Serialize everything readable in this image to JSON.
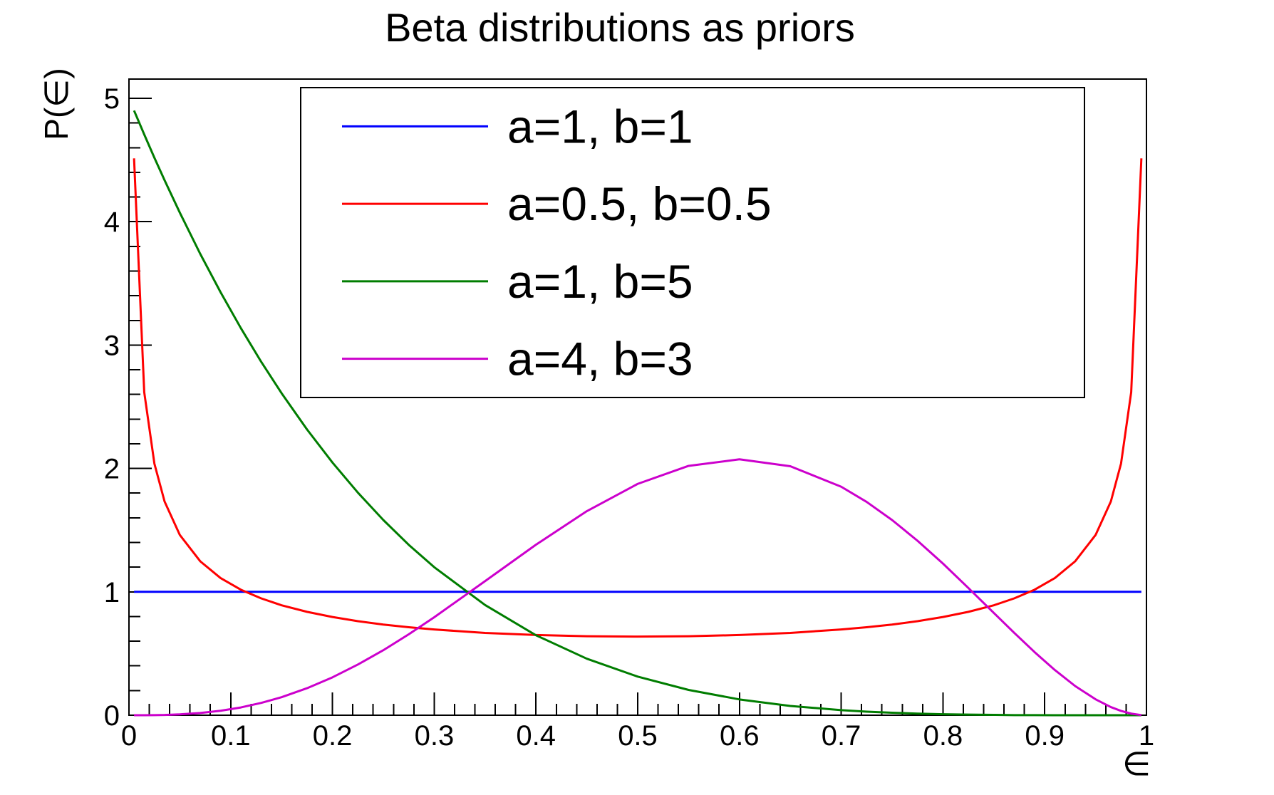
{
  "chart_data": {
    "type": "line",
    "title": "Beta distributions as priors",
    "xlabel": "∈",
    "ylabel": "P(∈)",
    "xlim": [
      0,
      1
    ],
    "ylim": [
      0,
      5.156
    ],
    "grid": false,
    "legend_position": "top-center",
    "x_axis": {
      "major_ticks": [
        0,
        0.1,
        0.2,
        0.3,
        0.4,
        0.5,
        0.6,
        0.7,
        0.8,
        0.9,
        1
      ],
      "tick_labels": [
        "0",
        "0.1",
        "0.2",
        "0.3",
        "0.4",
        "0.5",
        "0.6",
        "0.7",
        "0.8",
        "0.9",
        "1"
      ],
      "minor_tick_step": 0.02
    },
    "y_axis": {
      "major_ticks": [
        0,
        1,
        2,
        3,
        4,
        5
      ],
      "tick_labels": [
        "0",
        "1",
        "2",
        "3",
        "4",
        "5"
      ],
      "minor_tick_step": 0.2
    },
    "x": [
      0.005,
      0.015,
      0.025,
      0.035,
      0.05,
      0.07,
      0.09,
      0.11,
      0.13,
      0.15,
      0.175,
      0.2,
      0.225,
      0.25,
      0.275,
      0.3,
      0.35,
      0.4,
      0.45,
      0.5,
      0.55,
      0.6,
      0.65,
      0.7,
      0.725,
      0.75,
      0.775,
      0.8,
      0.825,
      0.85,
      0.87,
      0.89,
      0.91,
      0.93,
      0.95,
      0.965,
      0.975,
      0.985,
      0.995
    ],
    "series": [
      {
        "label": "a=1, b=1",
        "color": "#0000ff",
        "y": [
          1,
          1,
          1,
          1,
          1,
          1,
          1,
          1,
          1,
          1,
          1,
          1,
          1,
          1,
          1,
          1,
          1,
          1,
          1,
          1,
          1,
          1,
          1,
          1,
          1,
          1,
          1,
          1,
          1,
          1,
          1,
          1,
          1,
          1,
          1,
          1,
          1,
          1,
          1
        ]
      },
      {
        "label": "a=0.5, b=0.5",
        "color": "#ff0000",
        "y": [
          4.513,
          2.618,
          2.039,
          1.732,
          1.461,
          1.248,
          1.112,
          1.017,
          0.947,
          0.891,
          0.838,
          0.796,
          0.762,
          0.735,
          0.713,
          0.695,
          0.667,
          0.65,
          0.64,
          0.637,
          0.64,
          0.65,
          0.667,
          0.695,
          0.713,
          0.735,
          0.762,
          0.796,
          0.838,
          0.891,
          0.947,
          1.017,
          1.112,
          1.248,
          1.461,
          1.732,
          2.039,
          2.618,
          4.513
        ]
      },
      {
        "label": "a=1, b=5",
        "color": "#007d00",
        "y": [
          4.901,
          4.707,
          4.518,
          4.336,
          4.073,
          3.74,
          3.429,
          3.137,
          2.864,
          2.61,
          2.316,
          2.048,
          1.804,
          1.582,
          1.381,
          1.2,
          0.893,
          0.648,
          0.458,
          0.313,
          0.205,
          0.128,
          0.075,
          0.041,
          0.029,
          0.02,
          0.013,
          0.008,
          0.005,
          0.003,
          0.001,
          0.001,
          0,
          0,
          0,
          0,
          0,
          0,
          0
        ]
      },
      {
        "label": "a=4, b=3",
        "color": "#cc00cc",
        "y": [
          0,
          0,
          0.001,
          0.002,
          0.007,
          0.018,
          0.036,
          0.063,
          0.1,
          0.146,
          0.219,
          0.307,
          0.411,
          0.527,
          0.656,
          0.794,
          1.087,
          1.382,
          1.654,
          1.875,
          2.021,
          2.074,
          2.018,
          1.852,
          1.729,
          1.582,
          1.414,
          1.229,
          1.031,
          0.829,
          0.668,
          0.512,
          0.366,
          0.236,
          0.129,
          0.066,
          0.035,
          0.013,
          0.001
        ]
      }
    ]
  }
}
